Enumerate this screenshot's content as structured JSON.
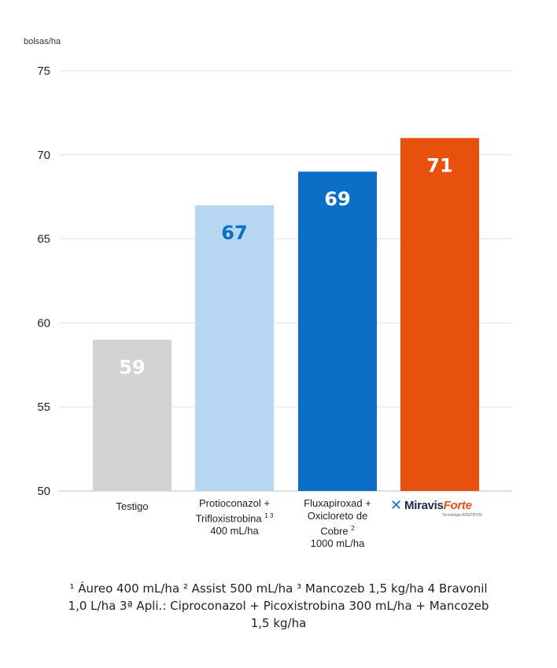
{
  "chart_data": {
    "type": "bar",
    "ylabel": "bolsas/ha",
    "ylim": [
      50,
      75
    ],
    "yticks": [
      50,
      55,
      60,
      65,
      70,
      75
    ],
    "grid": true,
    "categories": [
      "Testigo",
      "Protioconazol + Trifloxistrobina ¹ ³ 400 mL/ha",
      "Fluxapiroxad + Oxicloreto de Cobre ² 1000 mL/ha",
      "Miravis Forte"
    ],
    "values": [
      59,
      67,
      69,
      71
    ],
    "bar_colors": [
      "#d3d3d3",
      "#b7d6f2",
      "#0b6fc8",
      "#e8500e"
    ],
    "label_colors": [
      "#ffffff",
      "#0b6fc8",
      "#ffffff",
      "#ffffff"
    ]
  },
  "category_labels": {
    "c1": "Testigo",
    "c2_line1": "Protioconazol +",
    "c2_line2": "Trifloxistrobina",
    "c2_sup": "1 3",
    "c2_line3": "400 mL/ha",
    "c3_line1": "Fluxapiroxad +",
    "c3_line2": "Oxicloreto de",
    "c3_line3": "Cobre",
    "c3_sup": "2",
    "c3_line4": "1000 mL/ha"
  },
  "logo": {
    "icon": "miravis-x-icon",
    "name": "Miravis",
    "name_suffix": "Forte",
    "tagline": "Tecnologia ADEPIDYN"
  },
  "footnote": {
    "line1": "¹ Áureo 400 mL/ha ² Assist 500 mL/ha ³ Mancozeb 1,5 kg/ha 4 Bravonil",
    "line2": "1,0 L/ha 3ª Apli.: Ciproconazol + Picoxistrobina 300 mL/ha + Mancozeb",
    "line3": "1,5 kg/ha"
  }
}
